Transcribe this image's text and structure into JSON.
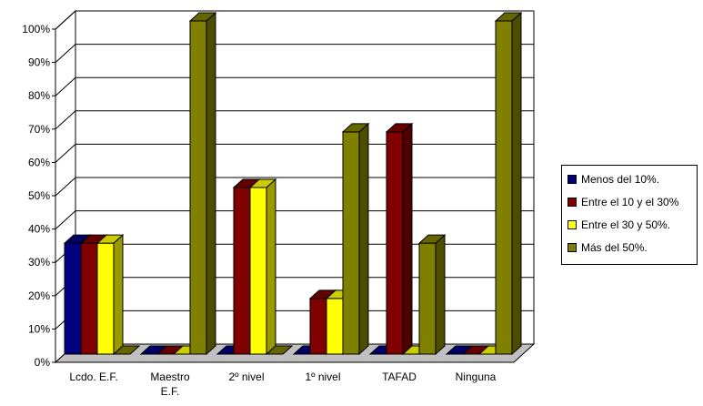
{
  "chart_data": {
    "type": "bar",
    "title": "",
    "xlabel": "",
    "ylabel": "",
    "ylim": [
      0,
      100
    ],
    "y_ticks": [
      "0%",
      "10%",
      "20%",
      "30%",
      "40%",
      "50%",
      "60%",
      "70%",
      "80%",
      "90%",
      "100%"
    ],
    "categories": [
      "Lcdo. E.F.",
      "Maestro E.F.",
      "2º nivel",
      "1º nivel",
      "TAFAD",
      "Ninguna"
    ],
    "series": [
      {
        "name": "Menos del 10%.",
        "color": "#000080",
        "values": [
          33.3,
          0,
          0,
          0,
          0,
          0
        ]
      },
      {
        "name": "Entre el 10 y el 30%",
        "color": "#800000",
        "values": [
          33.3,
          0,
          50,
          16.7,
          66.7,
          0
        ]
      },
      {
        "name": "Entre el 30 y 50%.",
        "color": "#FFFF00",
        "values": [
          33.3,
          0,
          50,
          16.7,
          0,
          0
        ]
      },
      {
        "name": "Más del 50%.",
        "color": "#808000",
        "values": [
          0,
          100,
          0,
          66.7,
          33.3,
          100
        ]
      }
    ],
    "grid": true,
    "legend_position": "right"
  }
}
